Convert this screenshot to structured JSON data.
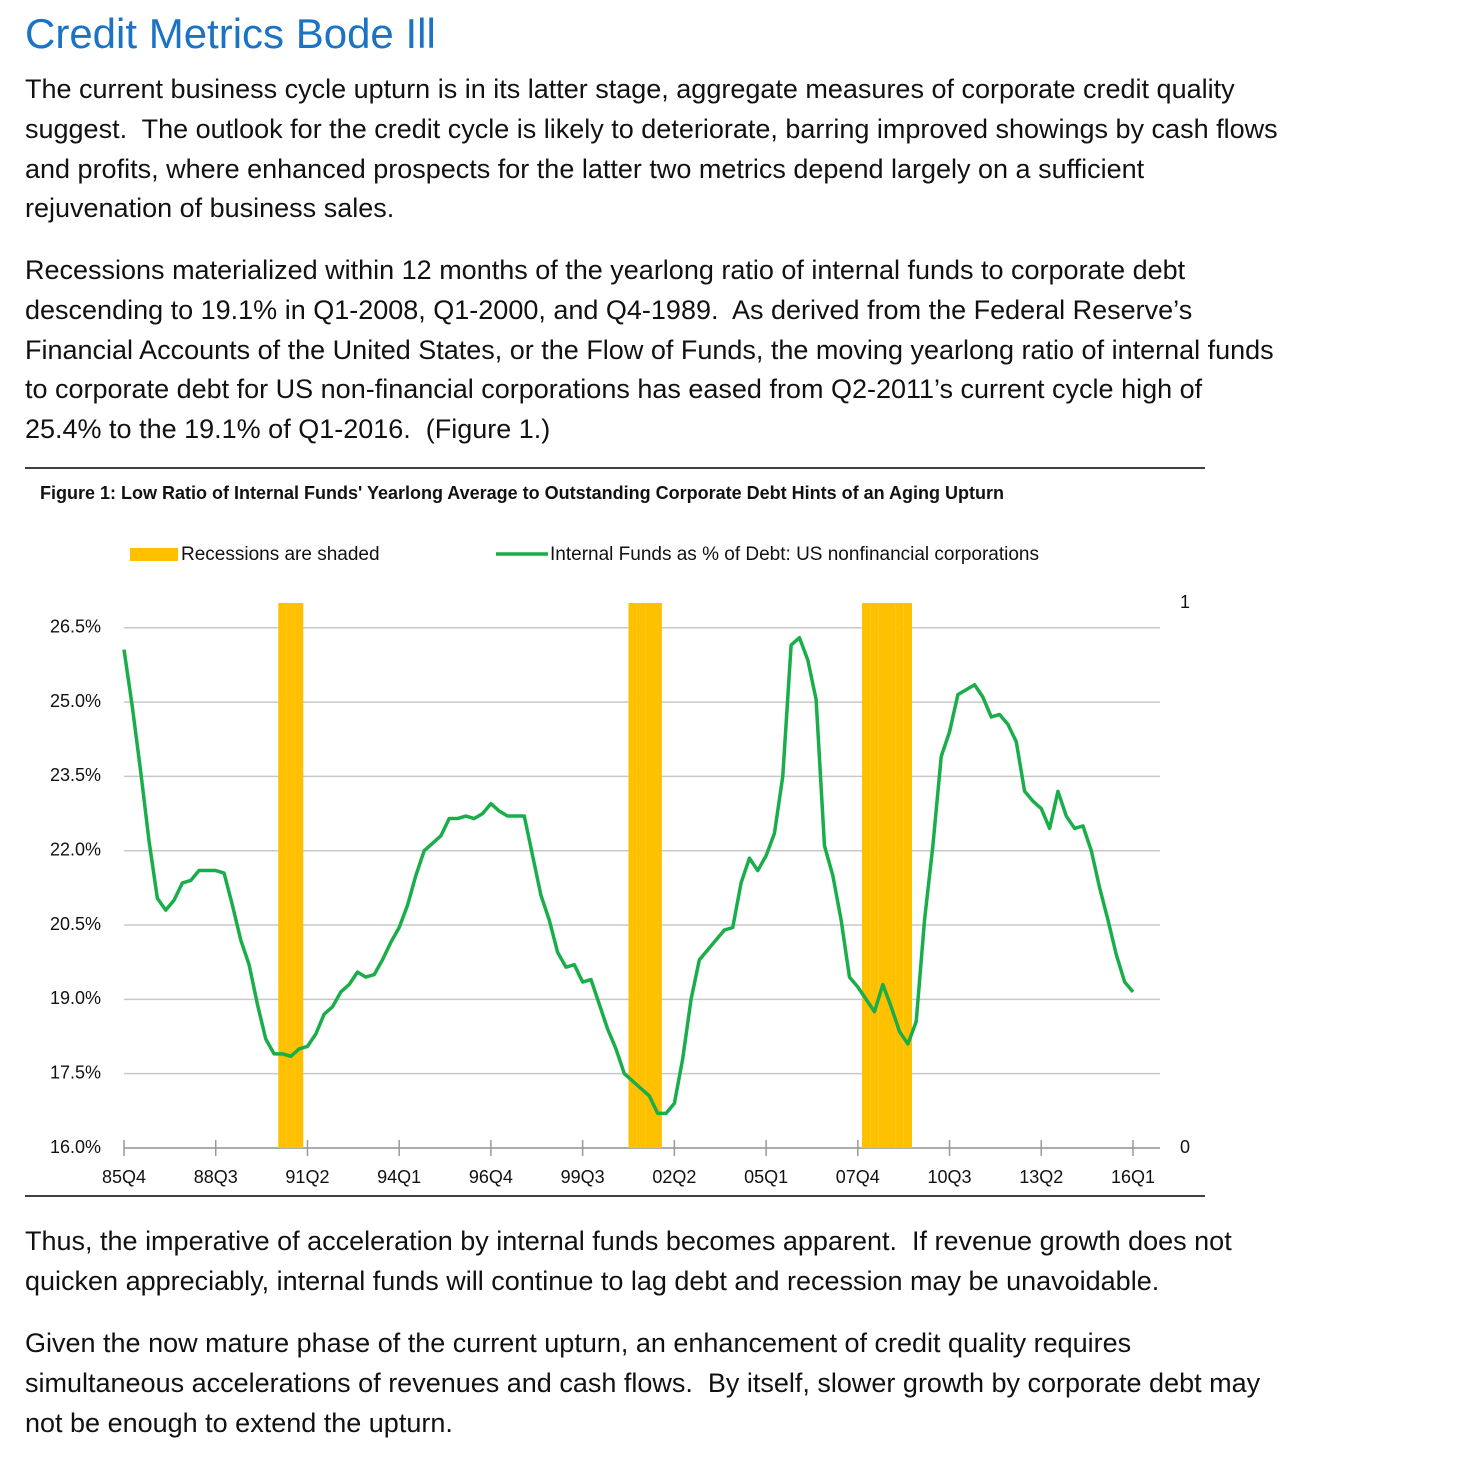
{
  "header": {
    "title": "Credit Metrics Bode Ill"
  },
  "paragraphs_before": [
    [
      "The current business cycle upturn is in its latter stage, aggregate measures of corporate credit quality",
      "suggest.  The outlook for the credit cycle is likely to deteriorate, barring improved showings by cash flows",
      "and profits, where enhanced prospects for the latter two metrics depend largely on a sufficient",
      "rejuvenation of business sales."
    ],
    [
      "Recessions materialized within 12 months of the yearlong ratio of internal funds to corporate debt",
      "descending to 19.1% in Q1-2008, Q1-2000, and Q4-1989.  As derived from the Federal Reserve’s",
      "Financial Accounts of the United States, or the Flow of Funds, the moving yearlong ratio of internal funds",
      "to corporate debt for US non-financial corporations has eased from Q2-2011’s current cycle high of",
      "25.4% to the 19.1% of Q1-2016.  (Figure 1.)"
    ]
  ],
  "chart_data": {
    "type": "line",
    "title": "Figure 1: Low Ratio of Internal Funds' Yearlong Average to Outstanding Corporate Debt Hints of an Aging Upturn",
    "categories": [
      "85Q4",
      null,
      null,
      null,
      null,
      null,
      null,
      null,
      null,
      null,
      null,
      "88Q3",
      null,
      null,
      null,
      null,
      null,
      null,
      null,
      null,
      null,
      null,
      "91Q2",
      null,
      null,
      null,
      null,
      null,
      null,
      null,
      null,
      null,
      null,
      "94Q1",
      null,
      null,
      null,
      null,
      null,
      null,
      null,
      null,
      null,
      null,
      "96Q4",
      null,
      null,
      null,
      null,
      null,
      null,
      null,
      null,
      null,
      null,
      "99Q3",
      null,
      null,
      null,
      null,
      null,
      null,
      null,
      null,
      null,
      null,
      "02Q2",
      null,
      null,
      null,
      null,
      null,
      null,
      null,
      null,
      null,
      null,
      "05Q1",
      null,
      null,
      null,
      null,
      null,
      null,
      null,
      null,
      null,
      null,
      "07Q4",
      null,
      null,
      null,
      null,
      null,
      null,
      null,
      null,
      null,
      null,
      "10Q3",
      null,
      null,
      null,
      null,
      null,
      null,
      null,
      null,
      null,
      null,
      "13Q2",
      null,
      null,
      null,
      null,
      null,
      null,
      null,
      null,
      null,
      null,
      "16Q1"
    ],
    "series": [
      {
        "name": "Recessions are shaded",
        "type": "bar",
        "axis": "y2",
        "color": "#ffc000",
        "values": [
          0,
          0,
          0,
          0,
          0,
          0,
          0,
          0,
          0,
          0,
          0,
          0,
          0,
          0,
          0,
          0,
          0,
          0,
          0,
          1,
          1,
          1,
          0,
          0,
          0,
          0,
          0,
          0,
          0,
          0,
          0,
          0,
          0,
          0,
          0,
          0,
          0,
          0,
          0,
          0,
          0,
          0,
          0,
          0,
          0,
          0,
          0,
          0,
          0,
          0,
          0,
          0,
          0,
          0,
          0,
          0,
          0,
          0,
          0,
          0,
          0,
          1,
          1,
          1,
          1,
          0,
          0,
          0,
          0,
          0,
          0,
          0,
          0,
          0,
          0,
          0,
          0,
          0,
          0,
          0,
          0,
          0,
          0,
          0,
          0,
          0,
          0,
          0,
          0,
          1,
          1,
          1,
          1,
          1,
          1,
          0,
          0,
          0,
          0,
          0,
          0,
          0,
          0,
          0,
          0,
          0,
          0,
          0,
          0,
          0,
          0,
          0,
          0,
          0,
          0,
          0,
          0,
          0,
          0,
          0,
          0,
          0
        ]
      },
      {
        "name": "Internal Funds as % of Debt: US nonfinancial corporations",
        "type": "line",
        "color": "#1aae4a",
        "values": [
          26.06,
          24.9,
          23.6,
          22.2,
          21.04,
          20.8,
          21.0,
          21.35,
          21.4,
          21.6,
          21.6,
          21.6,
          21.55,
          20.9,
          20.2,
          19.7,
          18.9,
          18.2,
          17.9,
          17.9,
          17.85,
          18.0,
          18.05,
          18.3,
          18.7,
          18.85,
          19.15,
          19.3,
          19.55,
          19.45,
          19.5,
          19.8,
          20.15,
          20.45,
          20.9,
          21.5,
          22.0,
          22.15,
          22.3,
          22.65,
          22.65,
          22.7,
          22.65,
          22.75,
          22.95,
          22.8,
          22.7,
          22.7,
          22.7,
          21.9,
          21.1,
          20.6,
          19.95,
          19.65,
          19.7,
          19.35,
          19.4,
          18.9,
          18.4,
          18.0,
          17.5,
          17.35,
          17.2,
          17.05,
          16.7,
          16.7,
          16.9,
          17.8,
          19.0,
          19.8,
          20.0,
          20.2,
          20.4,
          20.45,
          21.35,
          21.85,
          21.6,
          21.9,
          22.35,
          23.5,
          26.15,
          26.3,
          25.85,
          25.05,
          22.1,
          21.5,
          20.6,
          19.45,
          19.25,
          19.0,
          18.75,
          19.3,
          18.85,
          18.35,
          18.1,
          18.55,
          20.6,
          22.1,
          23.9,
          24.4,
          25.15,
          25.25,
          25.35,
          25.1,
          24.7,
          24.75,
          24.55,
          24.2,
          23.2,
          23.0,
          22.85,
          22.45,
          23.2,
          22.7,
          22.45,
          22.5,
          22.0,
          21.25,
          20.6,
          19.9,
          19.35,
          19.15
        ]
      }
    ],
    "ylim": [
      16,
      27
    ],
    "yticks": [
      {
        "value": 16,
        "label": "16.0%"
      },
      {
        "value": 17.5,
        "label": "17.5%"
      },
      {
        "value": 19,
        "label": "19.0%"
      },
      {
        "value": 20.5,
        "label": "20.5%"
      },
      {
        "value": 22,
        "label": "22.0%"
      },
      {
        "value": 23.5,
        "label": "23.5%"
      },
      {
        "value": 25,
        "label": "25.0%"
      },
      {
        "value": 26.5,
        "label": "26.5%"
      }
    ],
    "y2lim": [
      0,
      1
    ],
    "y2ticks": [
      0,
      1
    ],
    "grid": true,
    "legend": "top"
  },
  "paragraphs_after": [
    [
      "Thus, the imperative of acceleration by internal funds becomes apparent.  If revenue growth does not",
      "quicken appreciably, internal funds will continue to lag debt and recession may be unavoidable."
    ],
    [
      "Given the now mature phase of the current upturn, an enhancement of credit quality requires",
      "simultaneous accelerations of revenues and cash flows.  By itself, slower growth by corporate debt may",
      "not be enough to extend the upturn."
    ]
  ]
}
